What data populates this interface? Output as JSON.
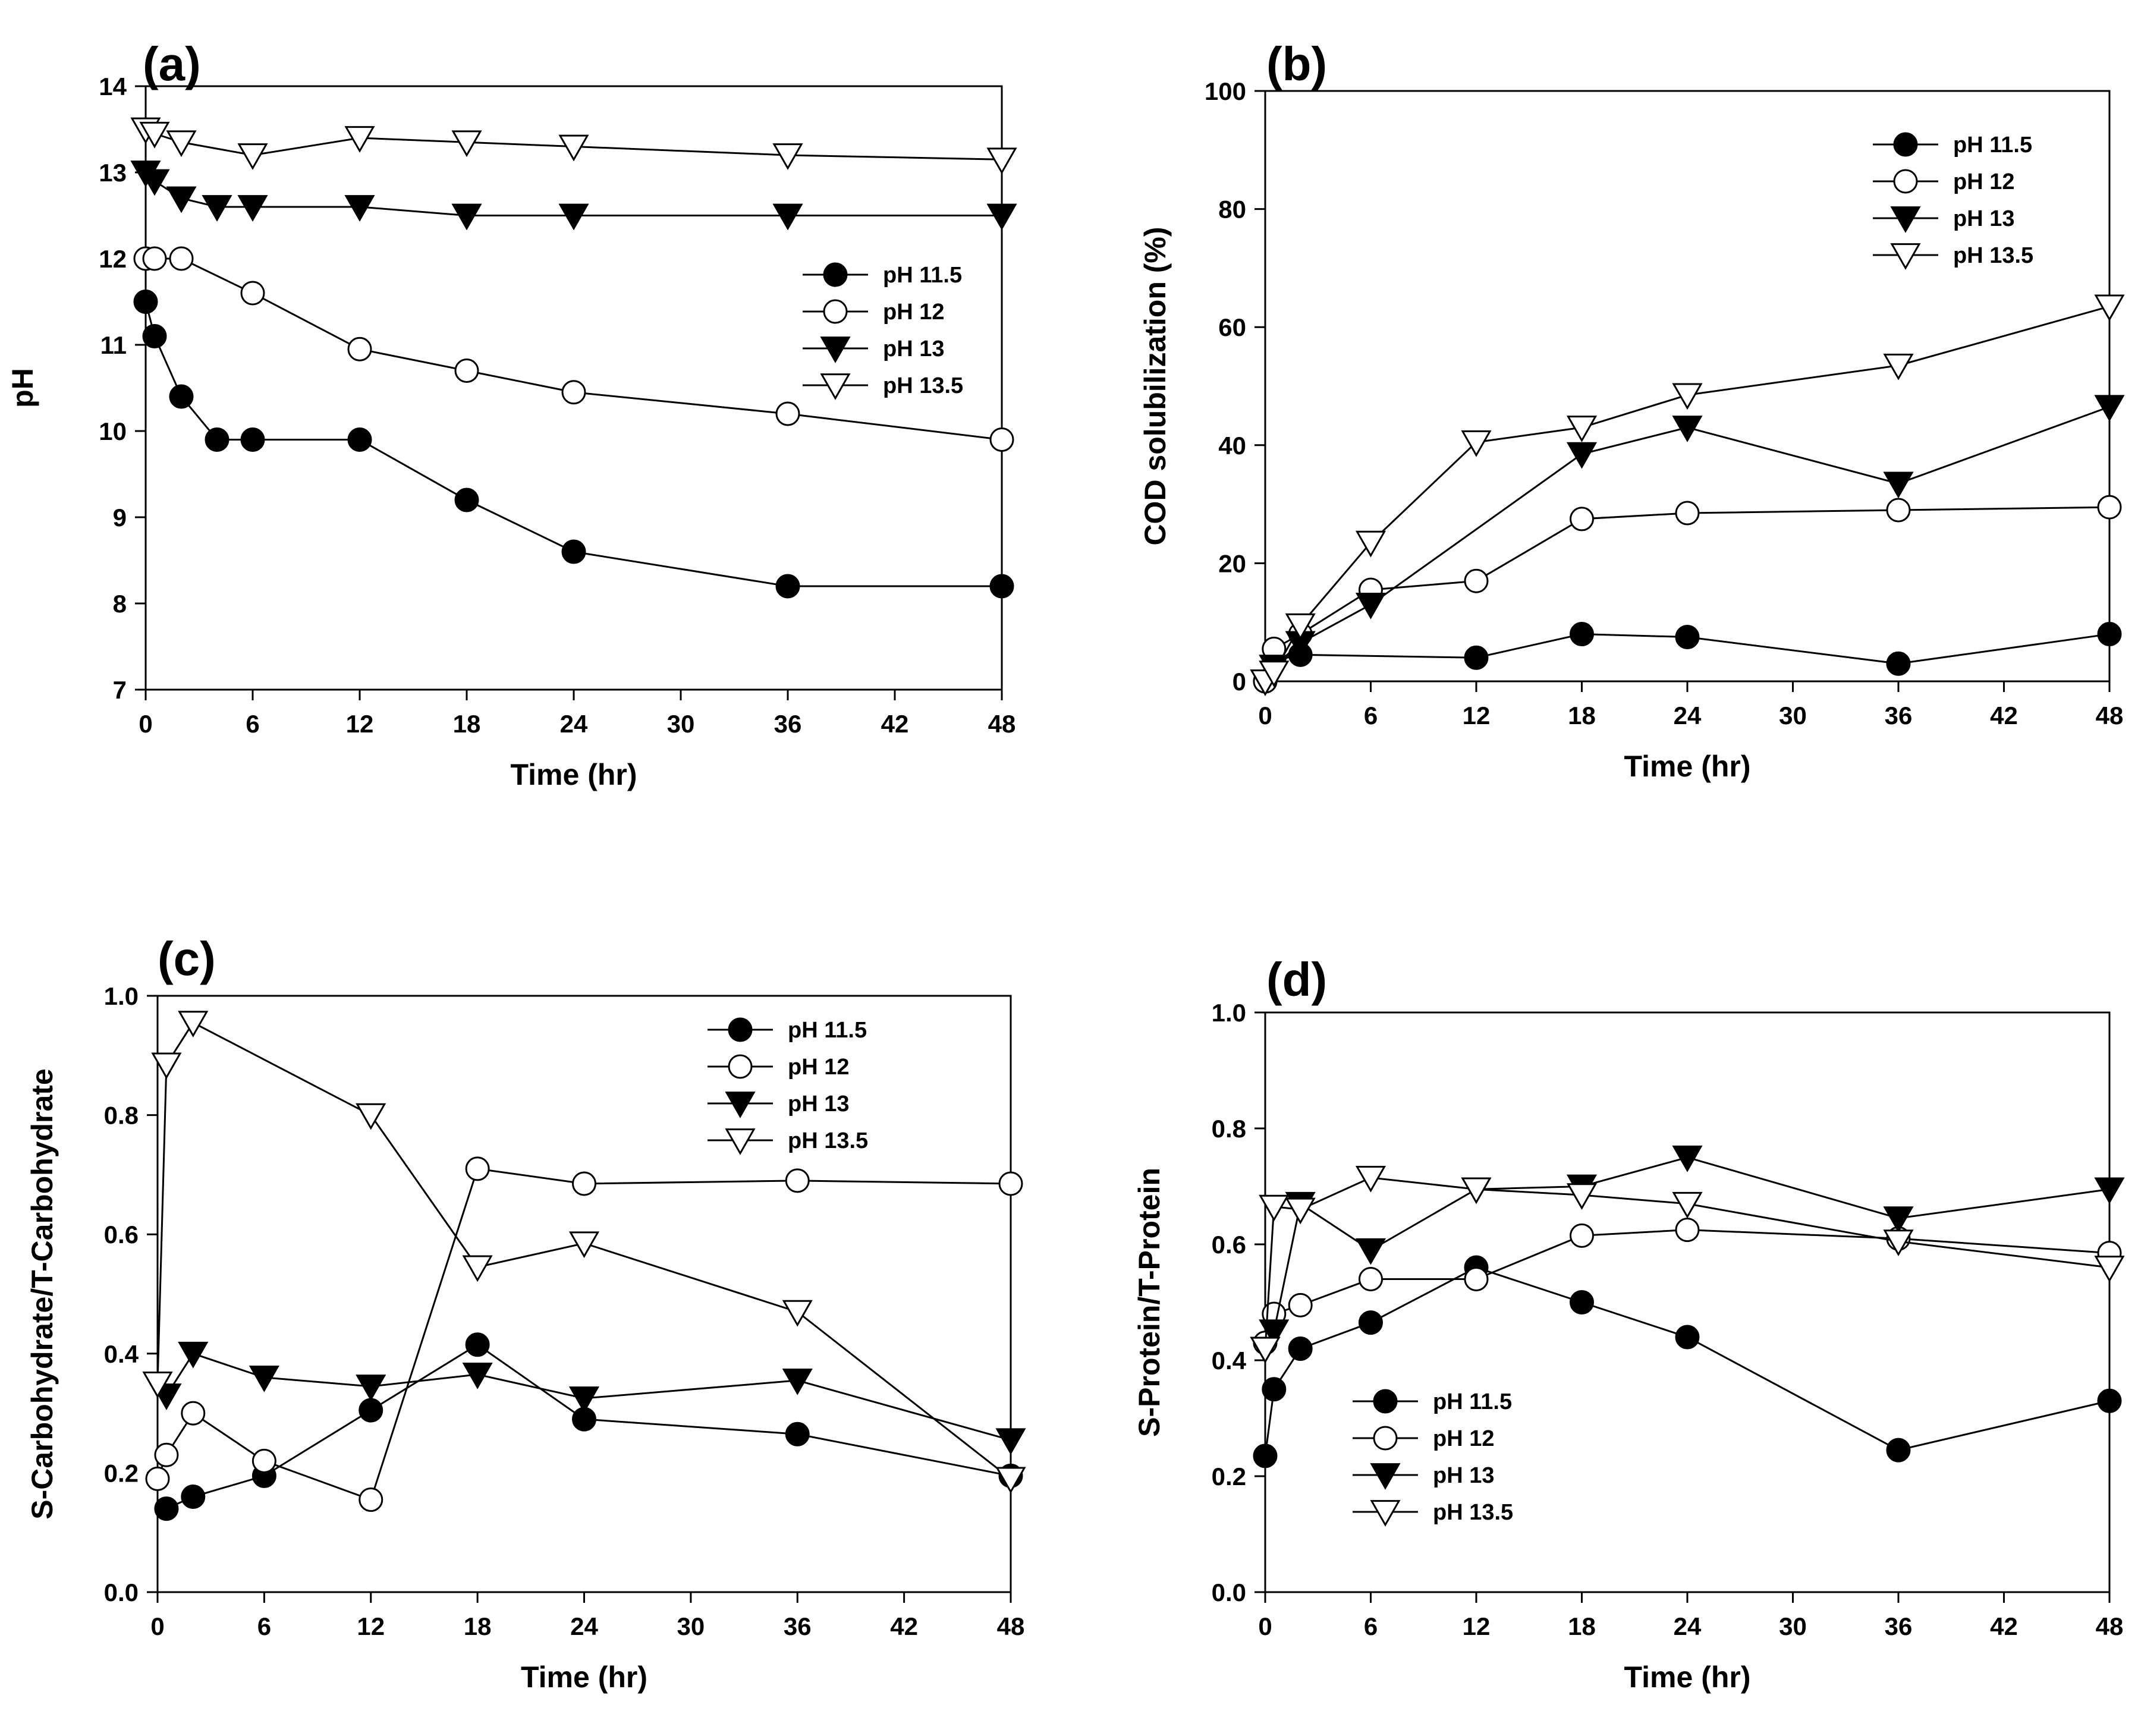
{
  "chart_data": [
    {
      "id": "a",
      "type": "line",
      "panel_label": "(a)",
      "xlabel": "Time (hr)",
      "ylabel": "pH",
      "xlim": [
        0,
        48
      ],
      "ylim": [
        7,
        14
      ],
      "xticks": [
        0,
        6,
        12,
        18,
        24,
        30,
        36,
        42,
        48
      ],
      "yticks": [
        7,
        8,
        9,
        10,
        11,
        12,
        13,
        14
      ],
      "ytick_decimals": 0,
      "legend_position": "middle-right",
      "series": [
        {
          "name": "pH 11.5",
          "marker": "filled-circle",
          "x": [
            0,
            0.5,
            2,
            4,
            6,
            12,
            18,
            24,
            36,
            48
          ],
          "y": [
            11.5,
            11.1,
            10.4,
            9.9,
            9.9,
            9.9,
            9.2,
            8.6,
            8.2,
            8.2
          ]
        },
        {
          "name": "pH 12",
          "marker": "open-circle",
          "x": [
            0,
            0.5,
            2,
            6,
            12,
            18,
            24,
            36,
            48
          ],
          "y": [
            12.0,
            12.0,
            12.0,
            11.6,
            10.95,
            10.7,
            10.45,
            10.2,
            9.9
          ]
        },
        {
          "name": "pH 13",
          "marker": "filled-triangle",
          "x": [
            0,
            0.5,
            2,
            4,
            6,
            12,
            18,
            24,
            36,
            48
          ],
          "y": [
            13.0,
            12.9,
            12.7,
            12.6,
            12.6,
            12.6,
            12.5,
            12.5,
            12.5,
            12.5
          ]
        },
        {
          "name": "pH 13.5",
          "marker": "open-triangle",
          "x": [
            0,
            0.5,
            2,
            6,
            12,
            18,
            24,
            36,
            48
          ],
          "y": [
            13.5,
            13.45,
            13.35,
            13.2,
            13.4,
            13.35,
            13.3,
            13.2,
            13.15
          ]
        }
      ]
    },
    {
      "id": "b",
      "type": "line",
      "panel_label": "(b)",
      "xlabel": "Time (hr)",
      "ylabel": "COD solubilization (%)",
      "xlim": [
        0,
        48
      ],
      "ylim": [
        0,
        100
      ],
      "xticks": [
        0,
        6,
        12,
        18,
        24,
        30,
        36,
        42,
        48
      ],
      "yticks": [
        0,
        20,
        40,
        60,
        80,
        100
      ],
      "ytick_decimals": 0,
      "legend_position": "top-right",
      "series": [
        {
          "name": "pH 11.5",
          "marker": "filled-circle",
          "x": [
            0,
            0.5,
            2,
            12,
            18,
            24,
            36,
            48
          ],
          "y": [
            0,
            3.5,
            4.5,
            4,
            8,
            7.5,
            3,
            8
          ]
        },
        {
          "name": "pH 12",
          "marker": "open-circle",
          "x": [
            0,
            0.5,
            2,
            6,
            12,
            18,
            24,
            36,
            48
          ],
          "y": [
            0,
            5.5,
            8,
            15.5,
            17,
            27.5,
            28.5,
            29,
            29.5
          ]
        },
        {
          "name": "pH 13",
          "marker": "filled-triangle",
          "x": [
            0,
            0.5,
            2,
            6,
            18,
            24,
            36,
            48
          ],
          "y": [
            0,
            2.5,
            6.5,
            13,
            38.5,
            43,
            33.5,
            46.5
          ]
        },
        {
          "name": "pH 13.5",
          "marker": "open-triangle",
          "x": [
            0,
            0.5,
            2,
            6,
            12,
            18,
            24,
            36,
            48
          ],
          "y": [
            0,
            1.5,
            9.5,
            23.5,
            40.5,
            43,
            48.5,
            53.5,
            63.5
          ]
        }
      ]
    },
    {
      "id": "c",
      "type": "line",
      "panel_label": "(c)",
      "xlabel": "Time (hr)",
      "ylabel": "S-Carbohydrate/T-Carbohydrate",
      "xlim": [
        0,
        48
      ],
      "ylim": [
        0,
        1.0
      ],
      "xticks": [
        0,
        6,
        12,
        18,
        24,
        30,
        36,
        42,
        48
      ],
      "yticks": [
        0,
        0.2,
        0.4,
        0.6,
        0.8,
        1.0
      ],
      "ytick_decimals": 1,
      "legend_position": "top-right",
      "series": [
        {
          "name": "pH 11.5",
          "marker": "filled-circle",
          "x": [
            0.5,
            2,
            6,
            12,
            18,
            24,
            36,
            48
          ],
          "y": [
            0.14,
            0.16,
            0.195,
            0.305,
            0.415,
            0.29,
            0.265,
            0.195
          ]
        },
        {
          "name": "pH 12",
          "marker": "open-circle",
          "x": [
            0,
            0.5,
            2,
            6,
            12,
            18,
            24,
            36,
            48
          ],
          "y": [
            0.19,
            0.23,
            0.3,
            0.22,
            0.155,
            0.71,
            0.685,
            0.69,
            0.685
          ]
        },
        {
          "name": "pH 13",
          "marker": "filled-triangle",
          "x": [
            0.5,
            2,
            6,
            12,
            18,
            24,
            36,
            48
          ],
          "y": [
            0.33,
            0.4,
            0.36,
            0.345,
            0.365,
            0.325,
            0.355,
            0.255
          ]
        },
        {
          "name": "pH 13.5",
          "marker": "open-triangle",
          "x": [
            0,
            0.5,
            2,
            12,
            18,
            24,
            36,
            48
          ],
          "y": [
            0.35,
            0.885,
            0.955,
            0.8,
            0.545,
            0.585,
            0.47,
            0.19
          ]
        }
      ]
    },
    {
      "id": "d",
      "type": "line",
      "panel_label": "(d)",
      "xlabel": "Time (hr)",
      "ylabel": "S-Protein/T-Protein",
      "xlim": [
        0,
        48
      ],
      "ylim": [
        0,
        1.0
      ],
      "xticks": [
        0,
        6,
        12,
        18,
        24,
        30,
        36,
        42,
        48
      ],
      "yticks": [
        0,
        0.2,
        0.4,
        0.6,
        0.8,
        1.0
      ],
      "ytick_decimals": 1,
      "legend_position": "bottom-left",
      "series": [
        {
          "name": "pH 11.5",
          "marker": "filled-circle",
          "x": [
            0,
            0.5,
            2,
            6,
            12,
            18,
            24,
            36,
            48
          ],
          "y": [
            0.235,
            0.35,
            0.42,
            0.465,
            0.56,
            0.5,
            0.44,
            0.245,
            0.33
          ]
        },
        {
          "name": "pH 12",
          "marker": "open-circle",
          "x": [
            0,
            0.5,
            2,
            6,
            12,
            18,
            24,
            36,
            48
          ],
          "y": [
            0.43,
            0.48,
            0.495,
            0.54,
            0.54,
            0.615,
            0.625,
            0.61,
            0.585
          ]
        },
        {
          "name": "pH 13",
          "marker": "filled-triangle",
          "x": [
            0,
            0.5,
            2,
            6,
            12,
            18,
            24,
            36,
            48
          ],
          "y": [
            0.42,
            0.45,
            0.67,
            0.59,
            0.695,
            0.7,
            0.75,
            0.645,
            0.695
          ]
        },
        {
          "name": "pH 13.5",
          "marker": "open-triangle",
          "x": [
            0,
            0.5,
            2,
            6,
            12,
            18,
            24,
            36,
            48
          ],
          "y": [
            0.42,
            0.665,
            0.66,
            0.715,
            0.695,
            0.685,
            0.67,
            0.605,
            0.56
          ]
        }
      ]
    }
  ]
}
